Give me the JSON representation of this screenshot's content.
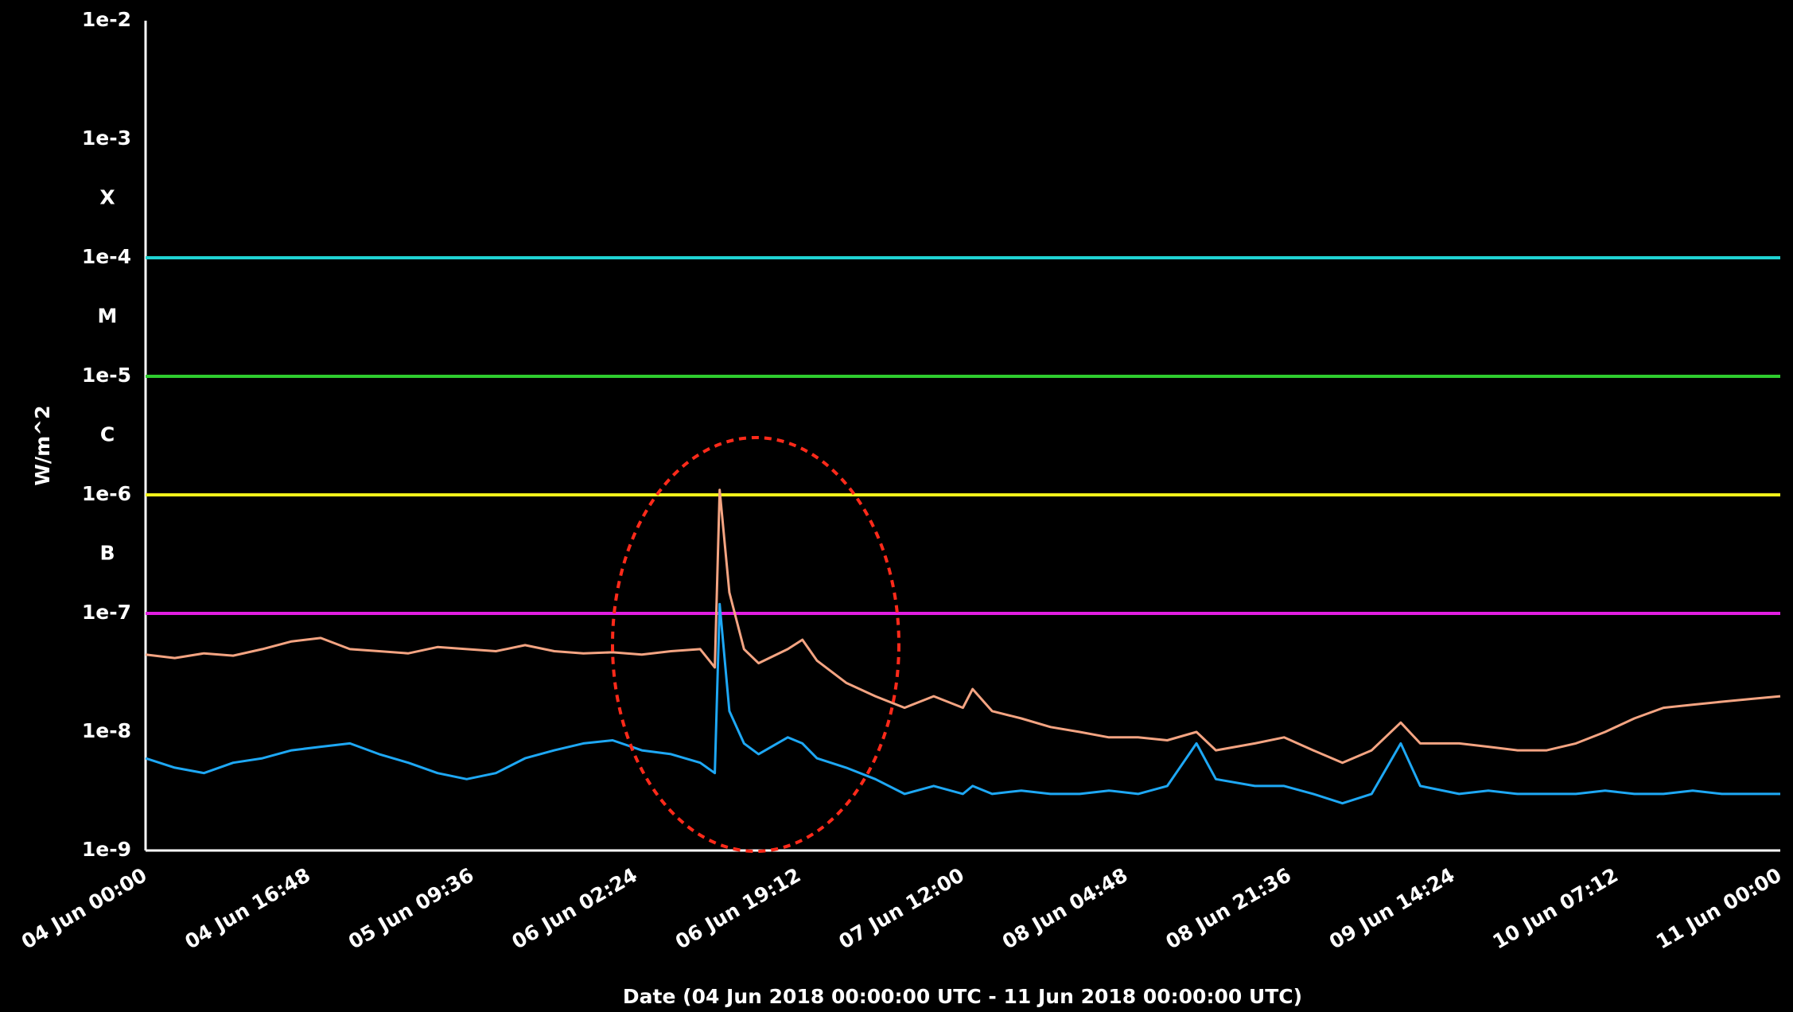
{
  "chart_data": {
    "type": "line",
    "ylabel": "W/m^2",
    "xlabel": "Date (04 Jun 2018 00:00:00 UTC - 11 Jun 2018 00:00:00 UTC)",
    "log_y": true,
    "grid": true,
    "minor_grid": true,
    "ylim": [
      1e-09,
      0.01
    ],
    "yticks": [
      {
        "value": 1e-09,
        "label": "1e-9"
      },
      {
        "value": 1e-08,
        "label": "1e-8"
      },
      {
        "value": 1e-07,
        "label": "1e-7"
      },
      {
        "value": 1e-06,
        "label": "1e-6"
      },
      {
        "value": 1e-05,
        "label": "1e-5"
      },
      {
        "value": 0.0001,
        "label": "1e-4"
      },
      {
        "value": 0.001,
        "label": "1e-3"
      },
      {
        "value": 0.01,
        "label": "1e-2"
      }
    ],
    "class_labels": [
      {
        "value": 0.000316,
        "label": "X"
      },
      {
        "value": 3.16e-05,
        "label": "M"
      },
      {
        "value": 3.16e-06,
        "label": "C"
      },
      {
        "value": 3.16e-07,
        "label": "B"
      }
    ],
    "threshold_lines": [
      {
        "value": 0.0001,
        "color": "#1fd3d3"
      },
      {
        "value": 1e-05,
        "color": "#2ecc2e"
      },
      {
        "value": 1e-06,
        "color": "#f2f21a"
      },
      {
        "value": 1e-07,
        "color": "#e21ee2"
      }
    ],
    "xlim": [
      "2018-06-04T00:00",
      "2018-06-11T00:00"
    ],
    "xticks": [
      {
        "value": "2018-06-04T00:00",
        "label": "04 Jun 00:00"
      },
      {
        "value": "2018-06-04T16:48",
        "label": "04 Jun 16:48"
      },
      {
        "value": "2018-06-05T09:36",
        "label": "05 Jun 09:36"
      },
      {
        "value": "2018-06-06T02:24",
        "label": "06 Jun 02:24"
      },
      {
        "value": "2018-06-06T19:12",
        "label": "06 Jun 19:12"
      },
      {
        "value": "2018-06-07T12:00",
        "label": "07 Jun 12:00"
      },
      {
        "value": "2018-06-08T04:48",
        "label": "08 Jun 04:48"
      },
      {
        "value": "2018-06-08T21:36",
        "label": "08 Jun 21:36"
      },
      {
        "value": "2018-06-09T14:24",
        "label": "09 Jun 14:24"
      },
      {
        "value": "2018-06-10T07:12",
        "label": "10 Jun 07:12"
      },
      {
        "value": "2018-06-11T00:00",
        "label": "11 Jun 00:00"
      }
    ],
    "x": [
      "2018-06-04T00:00",
      "2018-06-04T03:00",
      "2018-06-04T06:00",
      "2018-06-04T09:00",
      "2018-06-04T12:00",
      "2018-06-04T15:00",
      "2018-06-04T18:00",
      "2018-06-04T21:00",
      "2018-06-05T00:00",
      "2018-06-05T03:00",
      "2018-06-05T06:00",
      "2018-06-05T09:00",
      "2018-06-05T12:00",
      "2018-06-05T15:00",
      "2018-06-05T18:00",
      "2018-06-05T21:00",
      "2018-06-06T00:00",
      "2018-06-06T03:00",
      "2018-06-06T06:00",
      "2018-06-06T09:00",
      "2018-06-06T10:30",
      "2018-06-06T11:00",
      "2018-06-06T12:00",
      "2018-06-06T13:30",
      "2018-06-06T15:00",
      "2018-06-06T18:00",
      "2018-06-06T19:30",
      "2018-06-06T21:00",
      "2018-06-07T00:00",
      "2018-06-07T03:00",
      "2018-06-07T06:00",
      "2018-06-07T09:00",
      "2018-06-07T12:00",
      "2018-06-07T13:00",
      "2018-06-07T15:00",
      "2018-06-07T18:00",
      "2018-06-07T21:00",
      "2018-06-08T00:00",
      "2018-06-08T03:00",
      "2018-06-08T06:00",
      "2018-06-08T09:00",
      "2018-06-08T12:00",
      "2018-06-08T14:00",
      "2018-06-08T18:00",
      "2018-06-08T21:00",
      "2018-06-09T00:00",
      "2018-06-09T03:00",
      "2018-06-09T06:00",
      "2018-06-09T09:00",
      "2018-06-09T11:00",
      "2018-06-09T15:00",
      "2018-06-09T18:00",
      "2018-06-09T21:00",
      "2018-06-10T00:00",
      "2018-06-10T03:00",
      "2018-06-10T06:00",
      "2018-06-10T09:00",
      "2018-06-10T12:00",
      "2018-06-10T15:00",
      "2018-06-10T18:00",
      "2018-06-10T21:00",
      "2018-06-11T00:00"
    ],
    "series": [
      {
        "color": "#f4a482",
        "values": [
          4.5e-08,
          4.2e-08,
          4.6e-08,
          4.4e-08,
          5e-08,
          5.8e-08,
          6.2e-08,
          5e-08,
          4.8e-08,
          4.6e-08,
          5.2e-08,
          5e-08,
          4.8e-08,
          5.4e-08,
          4.8e-08,
          4.6e-08,
          4.7e-08,
          4.5e-08,
          4.8e-08,
          5e-08,
          3.5e-08,
          1.1e-06,
          1.5e-07,
          5e-08,
          3.8e-08,
          5e-08,
          6e-08,
          4e-08,
          2.6e-08,
          2e-08,
          1.6e-08,
          2e-08,
          1.6e-08,
          2.3e-08,
          1.5e-08,
          1.3e-08,
          1.1e-08,
          1e-08,
          9e-09,
          9e-09,
          8.5e-09,
          1e-08,
          7e-09,
          8e-09,
          9e-09,
          7e-09,
          5.5e-09,
          7e-09,
          1.2e-08,
          8e-09,
          8e-09,
          7.5e-09,
          7e-09,
          7e-09,
          8e-09,
          1e-08,
          1.3e-08,
          1.6e-08,
          1.7e-08,
          1.8e-08,
          1.9e-08,
          2e-08
        ]
      },
      {
        "color": "#1ea8f5",
        "values": [
          6e-09,
          5e-09,
          4.5e-09,
          5.5e-09,
          6e-09,
          7e-09,
          7.5e-09,
          8e-09,
          6.5e-09,
          5.5e-09,
          4.5e-09,
          4e-09,
          4.5e-09,
          6e-09,
          7e-09,
          8e-09,
          8.5e-09,
          7e-09,
          6.5e-09,
          5.5e-09,
          4.5e-09,
          1.2e-07,
          1.5e-08,
          8e-09,
          6.5e-09,
          9e-09,
          8e-09,
          6e-09,
          5e-09,
          4e-09,
          3e-09,
          3.5e-09,
          3e-09,
          3.5e-09,
          3e-09,
          3.2e-09,
          3e-09,
          3e-09,
          3.2e-09,
          3e-09,
          3.5e-09,
          8e-09,
          4e-09,
          3.5e-09,
          3.5e-09,
          3e-09,
          2.5e-09,
          3e-09,
          8e-09,
          3.5e-09,
          3e-09,
          3.2e-09,
          3e-09,
          3e-09,
          3e-09,
          3.2e-09,
          3e-09,
          3e-09,
          3.2e-09,
          3e-09,
          3e-09,
          3e-09
        ]
      }
    ]
  }
}
